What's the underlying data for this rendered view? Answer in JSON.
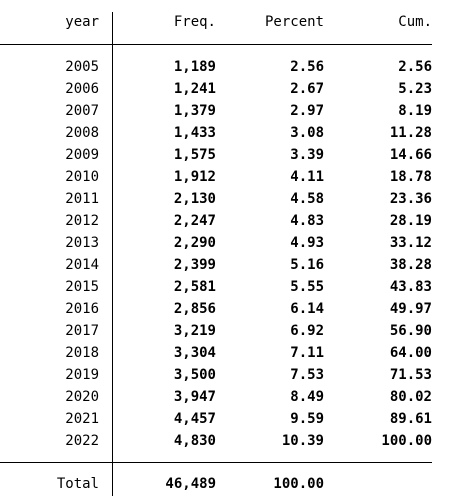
{
  "header": {
    "col_year": "year",
    "col_freq": "Freq.",
    "col_percent": "Percent",
    "col_cum": "Cum."
  },
  "rows": [
    {
      "year": "2005",
      "freq": "1,189",
      "percent": "2.56",
      "cum": "2.56"
    },
    {
      "year": "2006",
      "freq": "1,241",
      "percent": "2.67",
      "cum": "5.23"
    },
    {
      "year": "2007",
      "freq": "1,379",
      "percent": "2.97",
      "cum": "8.19"
    },
    {
      "year": "2008",
      "freq": "1,433",
      "percent": "3.08",
      "cum": "11.28"
    },
    {
      "year": "2009",
      "freq": "1,575",
      "percent": "3.39",
      "cum": "14.66"
    },
    {
      "year": "2010",
      "freq": "1,912",
      "percent": "4.11",
      "cum": "18.78"
    },
    {
      "year": "2011",
      "freq": "2,130",
      "percent": "4.58",
      "cum": "23.36"
    },
    {
      "year": "2012",
      "freq": "2,247",
      "percent": "4.83",
      "cum": "28.19"
    },
    {
      "year": "2013",
      "freq": "2,290",
      "percent": "4.93",
      "cum": "33.12"
    },
    {
      "year": "2014",
      "freq": "2,399",
      "percent": "5.16",
      "cum": "38.28"
    },
    {
      "year": "2015",
      "freq": "2,581",
      "percent": "5.55",
      "cum": "43.83"
    },
    {
      "year": "2016",
      "freq": "2,856",
      "percent": "6.14",
      "cum": "49.97"
    },
    {
      "year": "2017",
      "freq": "3,219",
      "percent": "6.92",
      "cum": "56.90"
    },
    {
      "year": "2018",
      "freq": "3,304",
      "percent": "7.11",
      "cum": "64.00"
    },
    {
      "year": "2019",
      "freq": "3,500",
      "percent": "7.53",
      "cum": "71.53"
    },
    {
      "year": "2020",
      "freq": "3,947",
      "percent": "8.49",
      "cum": "80.02"
    },
    {
      "year": "2021",
      "freq": "4,457",
      "percent": "9.59",
      "cum": "89.61"
    },
    {
      "year": "2022",
      "freq": "4,830",
      "percent": "10.39",
      "cum": "100.00"
    }
  ],
  "total": {
    "label": "Total",
    "freq": "46,489",
    "percent": "100.00"
  }
}
